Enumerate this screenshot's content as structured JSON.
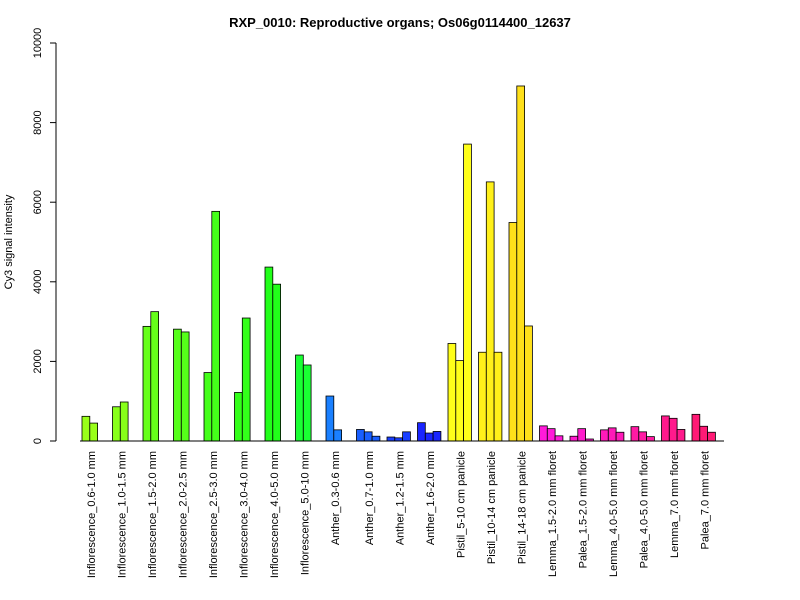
{
  "chart_data": {
    "type": "bar",
    "title": "RXP_0010: Reproductive organs; Os06g0114400_12637",
    "xlabel": "",
    "ylabel": "Cy3 signal intensity",
    "ylim": [
      0,
      10000
    ],
    "yticks": [
      0,
      2000,
      4000,
      6000,
      8000,
      10000
    ],
    "grid": false,
    "legend": "none",
    "groups": [
      {
        "label": "Inflorescence_0.6-1.0 mm",
        "color": "#99ff19",
        "values": [
          620,
          450
        ]
      },
      {
        "label": "Inflorescence_1.0-1.5 mm",
        "color": "#88ff1a",
        "values": [
          860,
          980
        ]
      },
      {
        "label": "Inflorescence_1.5-2.0 mm",
        "color": "#66ff1a",
        "values": [
          2880,
          3250
        ]
      },
      {
        "label": "Inflorescence_2.0-2.5 mm",
        "color": "#55ff1a",
        "values": [
          2810,
          2740
        ]
      },
      {
        "label": "Inflorescence_2.5-3.0 mm",
        "color": "#44ff1a",
        "values": [
          1720,
          5770
        ]
      },
      {
        "label": "Inflorescence_3.0-4.0 mm",
        "color": "#33ff1a",
        "values": [
          1220,
          3090
        ]
      },
      {
        "label": "Inflorescence_4.0-5.0 mm",
        "color": "#22ff1a",
        "values": [
          4370,
          3940
        ]
      },
      {
        "label": "Inflorescence_5.0-10 mm",
        "color": "#1aff33",
        "values": [
          2160,
          1910
        ]
      },
      {
        "label": "Anther_0.3-0.6 mm",
        "color": "#1a80ff",
        "values": [
          1130,
          280
        ]
      },
      {
        "label": "Anther_0.7-1.0 mm",
        "color": "#1a5fff",
        "values": [
          290,
          230,
          120
        ]
      },
      {
        "label": "Anther_1.2-1.5 mm",
        "color": "#1a3fff",
        "values": [
          100,
          80,
          230
        ]
      },
      {
        "label": "Anther_1.6-2.0 mm",
        "color": "#1a25ff",
        "values": [
          460,
          200,
          240
        ]
      },
      {
        "label": "Pistil_5-10 cm panicle",
        "color": "#ffff1a",
        "values": [
          2450,
          2020,
          7460
        ]
      },
      {
        "label": "Pistil_10-14 cm panicle",
        "color": "#fff01a",
        "values": [
          2230,
          6510,
          2230
        ]
      },
      {
        "label": "Pistil_14-18 cm panicle",
        "color": "#ffe01a",
        "values": [
          5490,
          8920,
          2890
        ]
      },
      {
        "label": "Lemma_1.5-2.0 mm floret",
        "color": "#ff1ad9",
        "values": [
          380,
          310,
          130
        ]
      },
      {
        "label": "Palea_1.5-2.0 mm floret",
        "color": "#ff1acc",
        "values": [
          120,
          310,
          50
        ]
      },
      {
        "label": "Lemma_4.0-5.0 mm floret",
        "color": "#ff1ab8",
        "values": [
          280,
          330,
          220
        ]
      },
      {
        "label": "Palea_4.0-5.0 mm floret",
        "color": "#ff1aa3",
        "values": [
          360,
          230,
          110
        ]
      },
      {
        "label": "Lemma_7.0 mm floret",
        "color": "#ff1a8c",
        "values": [
          630,
          570,
          290
        ]
      },
      {
        "label": "Palea_7.0 mm floret",
        "color": "#ff1a75",
        "values": [
          670,
          370,
          220
        ]
      }
    ]
  }
}
